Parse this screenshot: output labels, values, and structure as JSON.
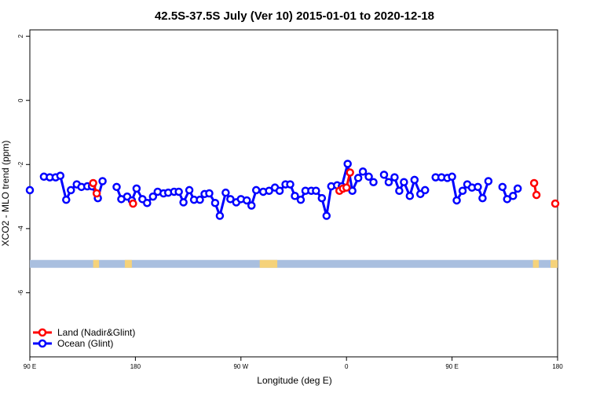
{
  "chart_data": {
    "type": "line",
    "title": "42.5S-37.5S July (Ver 10)   2015-01-01 to 2020-12-18",
    "xlabel": "Longitude (deg E)",
    "ylabel": "XCO2 - MLO trend (ppm)",
    "x_axis": {
      "range": [
        90,
        450
      ],
      "ticks": [
        {
          "value": 90,
          "label": "90 E"
        },
        {
          "value": 180,
          "label": "180"
        },
        {
          "value": 270,
          "label": "90 W"
        },
        {
          "value": 360,
          "label": "0"
        },
        {
          "value": 450,
          "label": "90 E"
        },
        {
          "value": 540,
          "label": "180"
        }
      ],
      "note": "longitude axis runs 90E eastward through 180, 90W, 0, 90E to 180 (720 deg span)"
    },
    "xlim": [
      90,
      540
    ],
    "ylim": [
      -8,
      2.2
    ],
    "y_ticks": [
      2,
      0,
      -2,
      -4,
      -6
    ],
    "grid": false,
    "legend_position": "bottom-left",
    "colors": {
      "land": "#ff0000",
      "ocean": "#0000ff",
      "land_mask_ocean": "#a9bfdf",
      "land_mask_land": "#f5d27a"
    },
    "series": [
      {
        "name": "Land (Nadir&Glint)",
        "color": "#ff0000",
        "segments": [
          [
            [
              144,
              -2.58
            ],
            [
              147,
              -2.9
            ]
          ],
          [
            [
              178,
              -3.22
            ]
          ],
          [
            [
              354,
              -2.82
            ],
            [
              357,
              -2.75
            ],
            [
              360,
              -2.72
            ],
            [
              363,
              -2.25
            ]
          ],
          [
            [
              520,
              -2.58
            ],
            [
              522,
              -2.95
            ]
          ],
          [
            [
              538,
              -3.22
            ]
          ]
        ]
      },
      {
        "name": "Ocean (Glint)",
        "color": "#0000ff",
        "segments": [
          [
            [
              90,
              -2.8
            ]
          ],
          [
            [
              102,
              -2.38
            ],
            [
              107,
              -2.4
            ],
            [
              112,
              -2.4
            ],
            [
              116,
              -2.35
            ],
            [
              121,
              -3.1
            ],
            [
              125,
              -2.8
            ],
            [
              130,
              -2.62
            ],
            [
              134,
              -2.7
            ],
            [
              139,
              -2.68
            ],
            [
              143,
              -2.68
            ],
            [
              148,
              -3.05
            ],
            [
              152,
              -2.52
            ]
          ],
          [
            [
              164,
              -2.7
            ],
            [
              168,
              -3.08
            ],
            [
              173,
              -3.0
            ],
            [
              177,
              -3.12
            ],
            [
              181,
              -2.75
            ],
            [
              186,
              -3.08
            ],
            [
              190,
              -3.2
            ],
            [
              195,
              -3.0
            ],
            [
              199,
              -2.85
            ],
            [
              204,
              -2.9
            ],
            [
              208,
              -2.88
            ],
            [
              213,
              -2.85
            ],
            [
              217,
              -2.85
            ],
            [
              221,
              -3.18
            ],
            [
              226,
              -2.8
            ],
            [
              230,
              -3.1
            ],
            [
              235,
              -3.1
            ],
            [
              239,
              -2.92
            ],
            [
              243,
              -2.9
            ],
            [
              248,
              -3.2
            ],
            [
              252,
              -3.6
            ],
            [
              257,
              -2.88
            ],
            [
              261,
              -3.08
            ],
            [
              266,
              -3.18
            ],
            [
              270,
              -3.08
            ],
            [
              275,
              -3.12
            ],
            [
              279,
              -3.28
            ],
            [
              283,
              -2.8
            ]
          ],
          [
            [
              289,
              -2.85
            ],
            [
              294,
              -2.82
            ],
            [
              299,
              -2.72
            ],
            [
              303,
              -2.82
            ],
            [
              308,
              -2.62
            ],
            [
              312,
              -2.62
            ],
            [
              316,
              -2.98
            ],
            [
              321,
              -3.1
            ],
            [
              325,
              -2.82
            ],
            [
              330,
              -2.82
            ],
            [
              334,
              -2.82
            ],
            [
              339,
              -3.05
            ],
            [
              343,
              -3.6
            ],
            [
              347,
              -2.68
            ],
            [
              352,
              -2.65
            ],
            [
              356,
              -2.68
            ],
            [
              361,
              -1.98
            ],
            [
              365,
              -2.82
            ],
            [
              370,
              -2.42
            ],
            [
              374,
              -2.22
            ],
            [
              379,
              -2.38
            ],
            [
              383,
              -2.55
            ]
          ],
          [
            [
              392,
              -2.32
            ],
            [
              396,
              -2.55
            ],
            [
              401,
              -2.4
            ],
            [
              405,
              -2.82
            ],
            [
              409,
              -2.55
            ],
            [
              414,
              -2.98
            ],
            [
              418,
              -2.48
            ],
            [
              423,
              -2.92
            ],
            [
              427,
              -2.8
            ]
          ],
          [
            [
              436,
              -2.4
            ],
            [
              441,
              -2.4
            ],
            [
              446,
              -2.42
            ],
            [
              450,
              -2.38
            ],
            [
              454,
              -3.12
            ],
            [
              459,
              -2.82
            ],
            [
              463,
              -2.62
            ],
            [
              467,
              -2.72
            ],
            [
              472,
              -2.7
            ],
            [
              476,
              -3.05
            ],
            [
              481,
              -2.52
            ]
          ],
          [
            [
              493,
              -2.7
            ],
            [
              497,
              -3.08
            ],
            [
              502,
              -2.98
            ],
            [
              506,
              -2.75
            ]
          ]
        ]
      }
    ],
    "land_mask": {
      "y": -5.1,
      "land_spans": [
        [
          144,
          149
        ],
        [
          171,
          177
        ],
        [
          286,
          301
        ],
        [
          519,
          524
        ],
        [
          534,
          540
        ]
      ]
    }
  }
}
